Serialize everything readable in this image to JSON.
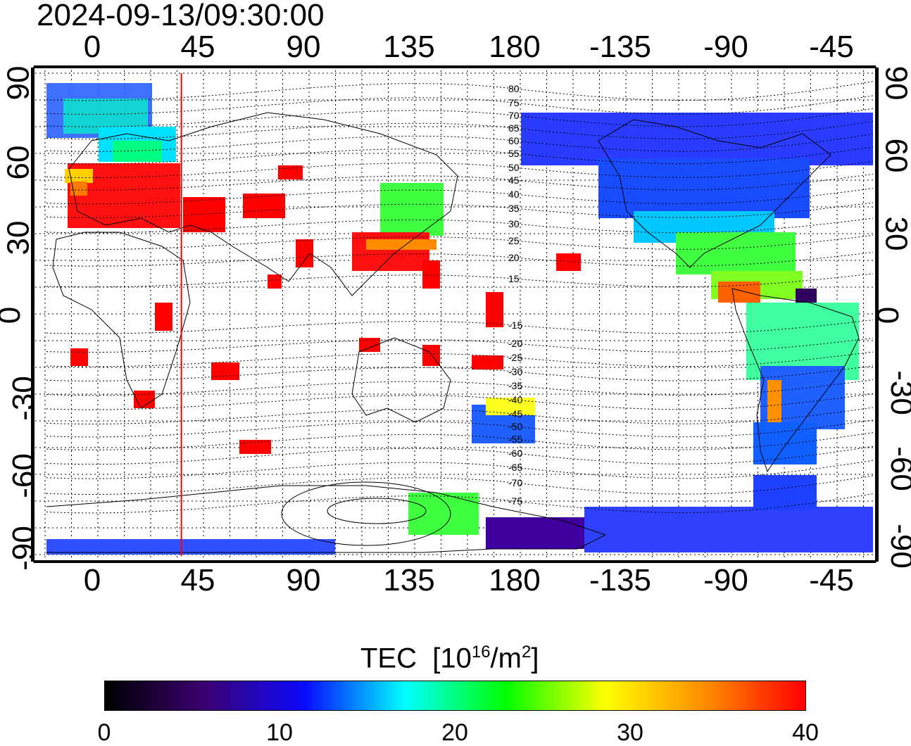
{
  "title": "2024-09-13/09:30:00",
  "x_ticks": [
    "0",
    "45",
    "90",
    "135",
    "180",
    "-135",
    "-90",
    "-45"
  ],
  "y_ticks": [
    "90",
    "60",
    "30",
    "0",
    "-30",
    "-60",
    "-90"
  ],
  "contour_labels": [
    "80",
    "75",
    "70",
    "65",
    "60",
    "55",
    "50",
    "45",
    "40",
    "35",
    "30",
    "25",
    "20",
    "15",
    "-15",
    "-20",
    "-25",
    "-30",
    "-35",
    "-40",
    "-45",
    "-50",
    "-55",
    "-60",
    "-65",
    "-70",
    "-75"
  ],
  "marker_longitude": 38,
  "colorbar": {
    "title": "TEC",
    "unit_prefix": "[10",
    "unit_exp": "16",
    "unit_mid": "/m",
    "unit_exp2": "2",
    "unit_suffix": "]",
    "min": 0,
    "max": 40,
    "labels": [
      "0",
      "10",
      "20",
      "30",
      "40"
    ],
    "colors": [
      "#000000",
      "#3b0070",
      "#0a0aff",
      "#00ffff",
      "#00ff00",
      "#ffff00",
      "#ff8c00",
      "#ff0000"
    ]
  },
  "colors": {
    "marker": "#ff0000",
    "high_tec": "#ff1a1a",
    "low_tec": "#2040ff"
  }
}
